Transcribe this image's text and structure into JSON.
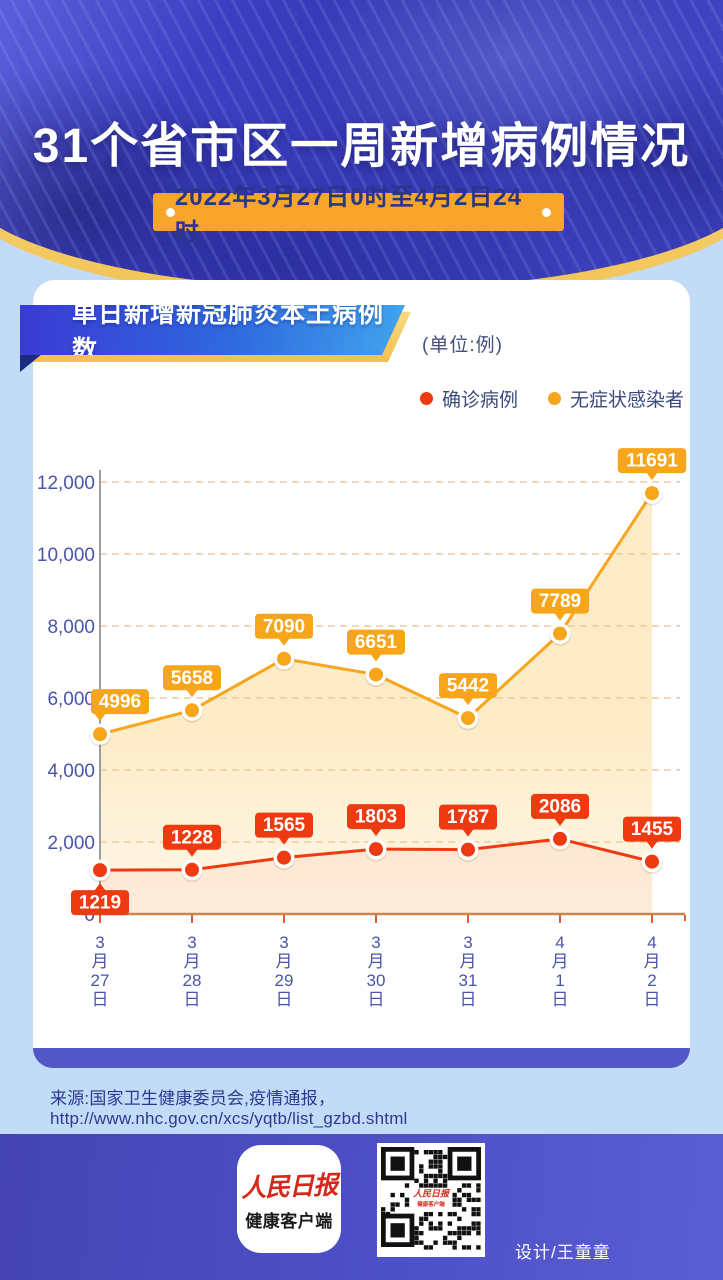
{
  "header": {
    "title": "31个省市区一周新增病例情况",
    "date_range": "2022年3月27日0时至4月2日24时"
  },
  "panel": {
    "chart_title": "单日新增新冠肺炎本土病例数",
    "unit_label": "(单位:例)"
  },
  "chart_data": {
    "type": "line",
    "title": "单日新增新冠肺炎本土病例数",
    "unit": "例",
    "categories": [
      "3月27日",
      "3月28日",
      "3月29日",
      "3月30日",
      "3月31日",
      "4月1日",
      "4月2日"
    ],
    "series": [
      {
        "name": "确诊病例",
        "color": "#EE3A10",
        "values": [
          1219,
          1228,
          1565,
          1803,
          1787,
          2086,
          1455
        ]
      },
      {
        "name": "无症状感染者",
        "color": "#F7A51B",
        "values": [
          4996,
          5658,
          7090,
          6651,
          5442,
          7789,
          11691
        ]
      }
    ],
    "ylim": [
      0,
      12000
    ],
    "ytick_interval": 2000,
    "ytick_labels": [
      "0",
      "2,000",
      "4,000",
      "6,000",
      "8,000",
      "10,000",
      "12,000"
    ],
    "grid": "horizontal-dashed",
    "legend_position": "top-right",
    "point_labels_shown": true
  },
  "source": {
    "text": "来源:国家卫生健康委员会,疫情通报，http://www.nhc.gov.cn/xcs/yqtb/list_gzbd.shtml"
  },
  "footer": {
    "logo_title": "人民日报",
    "logo_subtitle": "健康客户端",
    "qr_label_line1": "人民日报",
    "qr_label_line2": "健康客户端",
    "designer": "设计/王童童"
  },
  "colors": {
    "page_bg": "#C2DCF8",
    "header_blue": "#3E41C0",
    "gold_trim": "#F7D97F",
    "date_badge_orange": "#F7A52B",
    "confirmed_red": "#EE3A10",
    "asymptomatic_yellow": "#F7A51B",
    "axis_label_blue": "#4A55A8",
    "footer_indigo": "#4E50C4"
  }
}
